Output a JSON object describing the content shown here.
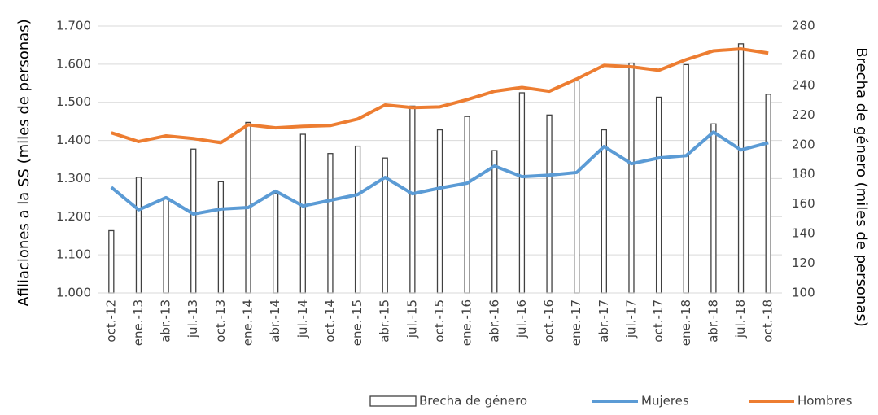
{
  "chart_data": {
    "type": "combo",
    "categories": [
      "oct.-12",
      "ene.-13",
      "abr.-13",
      "jul.-13",
      "oct.-13",
      "ene.-14",
      "abr.-14",
      "jul.-14",
      "oct.-14",
      "ene.-15",
      "abr.-15",
      "jul.-15",
      "oct.-15",
      "ene.-16",
      "abr.-16",
      "jul.-16",
      "oct.-16",
      "ene.-17",
      "abr.-17",
      "jul.-17",
      "oct.-17",
      "ene.-18",
      "abr.-18",
      "jul.-18",
      "oct.-18"
    ],
    "y_label": "Afiliaciones a la SS (miles de personas)",
    "y2_label": "Brecha de género (miles de personas)",
    "ylim": [
      1000,
      1700
    ],
    "yticks": [
      {
        "value": 1000,
        "label": "1.000"
      },
      {
        "value": 1100,
        "label": "1.100"
      },
      {
        "value": 1200,
        "label": "1.200"
      },
      {
        "value": 1300,
        "label": "1.300"
      },
      {
        "value": 1400,
        "label": "1.400"
      },
      {
        "value": 1500,
        "label": "1.500"
      },
      {
        "value": 1600,
        "label": "1.600"
      },
      {
        "value": 1700,
        "label": "1.700"
      }
    ],
    "y2lim": [
      100,
      280
    ],
    "y2ticks": [
      100,
      120,
      140,
      160,
      180,
      200,
      220,
      240,
      260,
      280
    ],
    "grid": true,
    "legend": "bottom",
    "series": [
      {
        "name": "Brecha de género",
        "type": "bar",
        "axis": "y2",
        "color": "#404040",
        "values": [
          142,
          178,
          164,
          197,
          175,
          215,
          167,
          207,
          194,
          199,
          191,
          226,
          210,
          219,
          196,
          235,
          220,
          243,
          210,
          255,
          232,
          254,
          214,
          268,
          234
        ]
      },
      {
        "name": "Mujeres",
        "type": "line",
        "color": "#5b9bd5",
        "values": [
          1277,
          1218,
          1250,
          1207,
          1220,
          1224,
          1267,
          1228,
          1243,
          1258,
          1303,
          1260,
          1275,
          1288,
          1333,
          1305,
          1309,
          1316,
          1384,
          1339,
          1354,
          1360,
          1422,
          1375,
          1394
        ]
      },
      {
        "name": "Hombres",
        "type": "line",
        "color": "#ed7d31",
        "values": [
          1420,
          1397,
          1412,
          1405,
          1394,
          1441,
          1433,
          1437,
          1439,
          1456,
          1493,
          1486,
          1488,
          1507,
          1529,
          1539,
          1529,
          1561,
          1597,
          1593,
          1584,
          1612,
          1635,
          1640,
          1629
        ]
      }
    ]
  }
}
